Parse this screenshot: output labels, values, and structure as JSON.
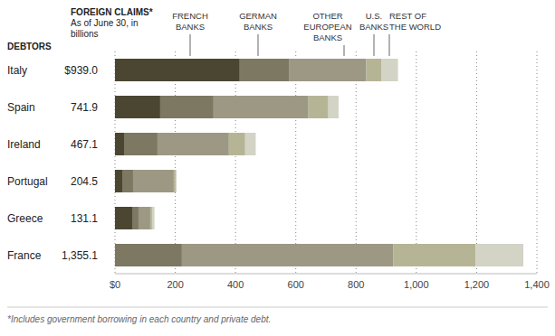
{
  "chart_data": {
    "type": "bar",
    "title": "FOREIGN CLAIMS*",
    "subtitle": "As of June 30, in billions",
    "y_label": "DEBTORS",
    "footnote": "*Includes government borrowing in each country and private debt.",
    "orientation": "horizontal",
    "stacked": true,
    "grid": true,
    "categories": [
      "Italy",
      "Spain",
      "Ireland",
      "Portugal",
      "Greece",
      "France"
    ],
    "total_labels": [
      "$939.0",
      "741.9",
      "467.1",
      "204.5",
      "131.1",
      "1,355.1"
    ],
    "series": [
      {
        "name": "FRENCH BANKS",
        "color": "#4b4632",
        "values": [
          414,
          150,
          30,
          24,
          57,
          0
        ]
      },
      {
        "name": "GERMAN BANKS",
        "color": "#7c7862",
        "values": [
          165,
          177,
          111,
          36,
          21,
          222
        ]
      },
      {
        "name": "OTHER EUROPEAN BANKS",
        "color": "#9c9884",
        "values": [
          255,
          315,
          237,
          135,
          39,
          702
        ]
      },
      {
        "name": "U.S. BANKS",
        "color": "#b5b596",
        "values": [
          51,
          66,
          54,
          6,
          6,
          273
        ]
      },
      {
        "name": "REST OF THE WORLD",
        "color": "#d3d3c6",
        "values": [
          54,
          33.9,
          35.1,
          3.5,
          8.1,
          158.1
        ]
      }
    ],
    "xlim": [
      0,
      1400
    ],
    "xticks": [
      {
        "value": 0,
        "label": "$0"
      },
      200,
      400,
      600,
      800,
      {
        "value": 1000,
        "label": "1,000"
      },
      {
        "value": 1200,
        "label": "1,200"
      },
      {
        "value": 1400,
        "label": "1,400"
      }
    ]
  }
}
